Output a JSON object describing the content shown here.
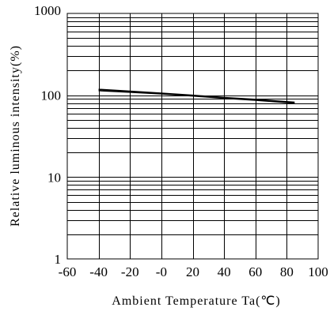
{
  "chart_data": {
    "type": "line",
    "title": "",
    "xlabel": "Ambient Temperature Ta(℃)",
    "ylabel": "Relative luminous intensity(%)",
    "x_ticks": [
      "-60",
      "-40",
      "-20",
      "-0",
      "20",
      "40",
      "60",
      "80",
      "100"
    ],
    "x_tick_values": [
      -60,
      -40,
      -20,
      0,
      20,
      40,
      60,
      80,
      100
    ],
    "y_ticks": [
      "1",
      "10",
      "100",
      "1000"
    ],
    "y_tick_values": [
      1,
      10,
      100,
      1000
    ],
    "xlim": [
      -60,
      100
    ],
    "ylim": [
      1,
      1000
    ],
    "y_scale": "log",
    "grid": true,
    "series": [
      {
        "x": [
          -40,
          -20,
          0,
          20,
          40,
          60,
          85
        ],
        "y": [
          118,
          112,
          106,
          100,
          94,
          89,
          82
        ]
      },
      {
        "x": [
          -40,
          -20,
          0,
          20,
          40,
          60,
          85
        ],
        "y": [
          114,
          109,
          104,
          98,
          92,
          87,
          80
        ]
      }
    ]
  }
}
